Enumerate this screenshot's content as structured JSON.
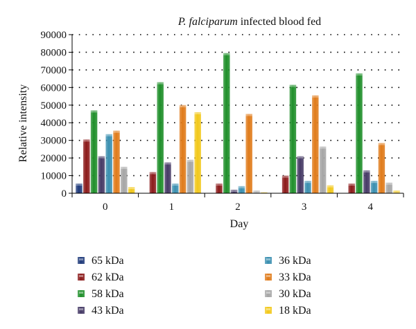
{
  "chart_data": {
    "type": "bar",
    "title": {
      "italic": "P. falciparum",
      "rest": " infected blood fed"
    },
    "xlabel": "Day",
    "ylabel": "Relative intensity",
    "categories": [
      "0",
      "1",
      "2",
      "3",
      "4"
    ],
    "ylim": [
      0,
      90000
    ],
    "yticks": [
      0,
      10000,
      20000,
      30000,
      40000,
      50000,
      60000,
      70000,
      80000,
      90000
    ],
    "grid": "dotted-horizontal",
    "legend_position": "bottom",
    "series": [
      {
        "name": "65 kDa",
        "color": "#1f3a7a",
        "values": [
          5500,
          0,
          0,
          0,
          0
        ]
      },
      {
        "name": "62 kDa",
        "color": "#8b1a1a",
        "values": [
          30500,
          12000,
          5500,
          10000,
          5500
        ]
      },
      {
        "name": "58 kDa",
        "color": "#1f8f2a",
        "values": [
          47000,
          63000,
          79500,
          61500,
          68000
        ]
      },
      {
        "name": "43 kDa",
        "color": "#463a66",
        "values": [
          21000,
          17500,
          2000,
          21000,
          13000
        ]
      },
      {
        "name": "36 kDa",
        "color": "#3a8fb0",
        "values": [
          33500,
          5500,
          4000,
          7000,
          7000
        ]
      },
      {
        "name": "33 kDa",
        "color": "#e07b1a",
        "values": [
          35500,
          50000,
          45000,
          55500,
          28500
        ]
      },
      {
        "name": "30 kDa",
        "color": "#a6a6a6",
        "values": [
          15000,
          19000,
          1500,
          26500,
          6000
        ]
      },
      {
        "name": "18 kDa",
        "color": "#f2c81a",
        "values": [
          3500,
          46000,
          500,
          4500,
          1500
        ]
      }
    ]
  }
}
